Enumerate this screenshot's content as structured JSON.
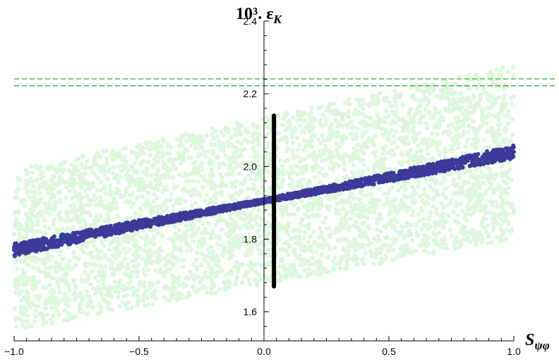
{
  "chart_data": {
    "type": "scatter",
    "title": "",
    "xlabel": "S_ψφ",
    "ylabel": "10³. ε_K",
    "xlim": [
      -1.0,
      1.0
    ],
    "ylim": [
      1.52,
      2.4
    ],
    "x_ticks": [
      -1.0,
      -0.5,
      0.0,
      0.5,
      1.0
    ],
    "x_tick_labels": [
      "−1.0",
      "−0.5",
      "0.0",
      "0.5",
      "1.0"
    ],
    "y_ticks": [
      1.6,
      1.8,
      2.0,
      2.2,
      2.4
    ],
    "y_tick_labels": [
      "1.6",
      "1.8",
      "2.0",
      "2.2",
      "2.4"
    ],
    "grid": false,
    "series": [
      {
        "style": "scatter-band",
        "color": "#dcf7dc",
        "x_range": [
          -1.0,
          1.0
        ],
        "lower_at_xmin": 1.55,
        "upper_at_xmin": 1.99,
        "lower_at_xmax": 1.8,
        "upper_at_xmax": 2.28
      },
      {
        "style": "scatter-line",
        "color": "#3a3a9a",
        "x": [
          -1.0,
          -0.5,
          0.0,
          0.5,
          1.0
        ],
        "y": [
          1.77,
          1.84,
          1.905,
          1.97,
          2.04
        ]
      }
    ],
    "reference_lines": [
      {
        "orientation": "horizontal",
        "value": 2.241,
        "style": "dashed",
        "color": "#2eaa2e"
      },
      {
        "orientation": "horizontal",
        "value": 2.222,
        "style": "dashed",
        "color": "#2eaa2e"
      }
    ],
    "vertical_segment": {
      "x": 0.04,
      "y_from": 1.67,
      "y_to": 2.14,
      "color": "#000000"
    }
  }
}
